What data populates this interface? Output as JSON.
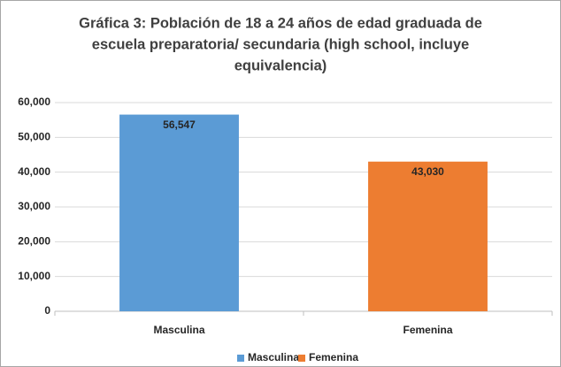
{
  "chart_data": {
    "type": "bar",
    "title": [
      "Gráfica 3: Población de 18 a 24 años de edad graduada de",
      "escuela preparatoria/ secundaria (high school, incluye",
      "equivalencia)"
    ],
    "categories": [
      "Masculina",
      "Femenina"
    ],
    "values": [
      56547,
      43030
    ],
    "value_labels": [
      "56,547",
      "43,030"
    ],
    "colors": [
      "#5b9bd5",
      "#ed7d31"
    ],
    "ylim": [
      0,
      60000
    ],
    "yticks": [
      0,
      {
        "value": 10000,
        "label": "10,000"
      },
      {
        "value": 20000,
        "label": "20,000"
      },
      {
        "value": 30000,
        "label": "30,000"
      },
      {
        "value": 40000,
        "label": "40,000"
      },
      {
        "value": 50000,
        "label": "50,000"
      },
      {
        "value": 60000,
        "label": "60,000"
      }
    ],
    "grid": true,
    "legend": "bottom"
  }
}
